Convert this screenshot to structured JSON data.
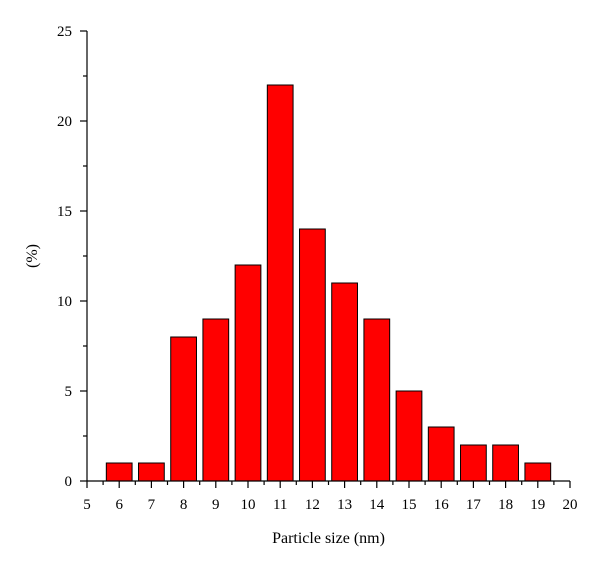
{
  "chart_data": {
    "type": "bar",
    "title": "",
    "xlabel": "Particle size (nm)",
    "ylabel": "(%)",
    "xlim": [
      5,
      20
    ],
    "ylim": [
      0,
      25
    ],
    "x_ticks": [
      5,
      6,
      7,
      8,
      9,
      10,
      11,
      12,
      13,
      14,
      15,
      16,
      17,
      18,
      19,
      20
    ],
    "y_ticks": [
      0,
      5,
      10,
      15,
      20,
      25
    ],
    "categories": [
      6,
      7,
      8,
      9,
      10,
      11,
      12,
      13,
      14,
      15,
      16,
      17,
      18,
      19
    ],
    "values": [
      1,
      1,
      8,
      9,
      12,
      22,
      14,
      11,
      9,
      5,
      3,
      2,
      2,
      1
    ],
    "bar_color": "#ff0000",
    "grid": false,
    "legend": "none"
  }
}
